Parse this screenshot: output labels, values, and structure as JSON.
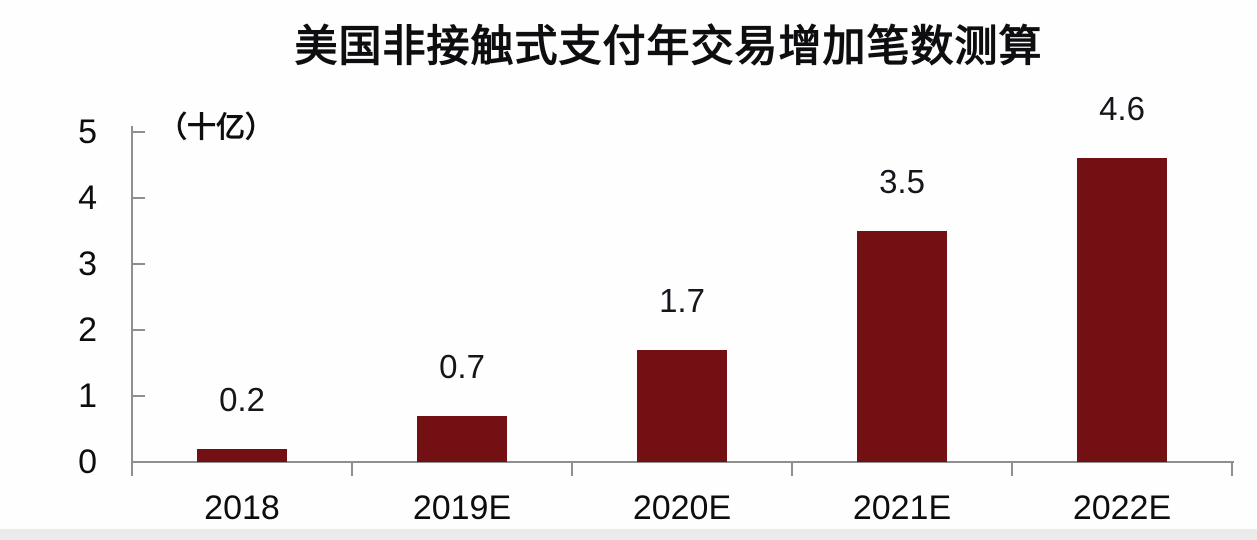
{
  "title": "美国非接触式支付年交易增加笔数测算",
  "unit_label": "（十亿）",
  "chart_data": {
    "type": "bar",
    "title": "美国非接触式支付年交易增加笔数测算",
    "unit_label": "（十亿）",
    "categories": [
      "2018",
      "2019E",
      "2020E",
      "2021E",
      "2022E"
    ],
    "values": [
      0.2,
      0.7,
      1.7,
      3.5,
      4.6
    ],
    "value_labels": [
      "0.2",
      "0.7",
      "1.7",
      "3.5",
      "4.6"
    ],
    "xlabel": "",
    "ylabel": "（十亿）",
    "ylim": [
      0,
      5
    ],
    "yticks": [
      0,
      1,
      2,
      3,
      4,
      5
    ],
    "grid": false,
    "legend": "none",
    "bar_color": "#731013",
    "axis_color": "#8f8f8f",
    "text_color": "#0d0d0f"
  }
}
